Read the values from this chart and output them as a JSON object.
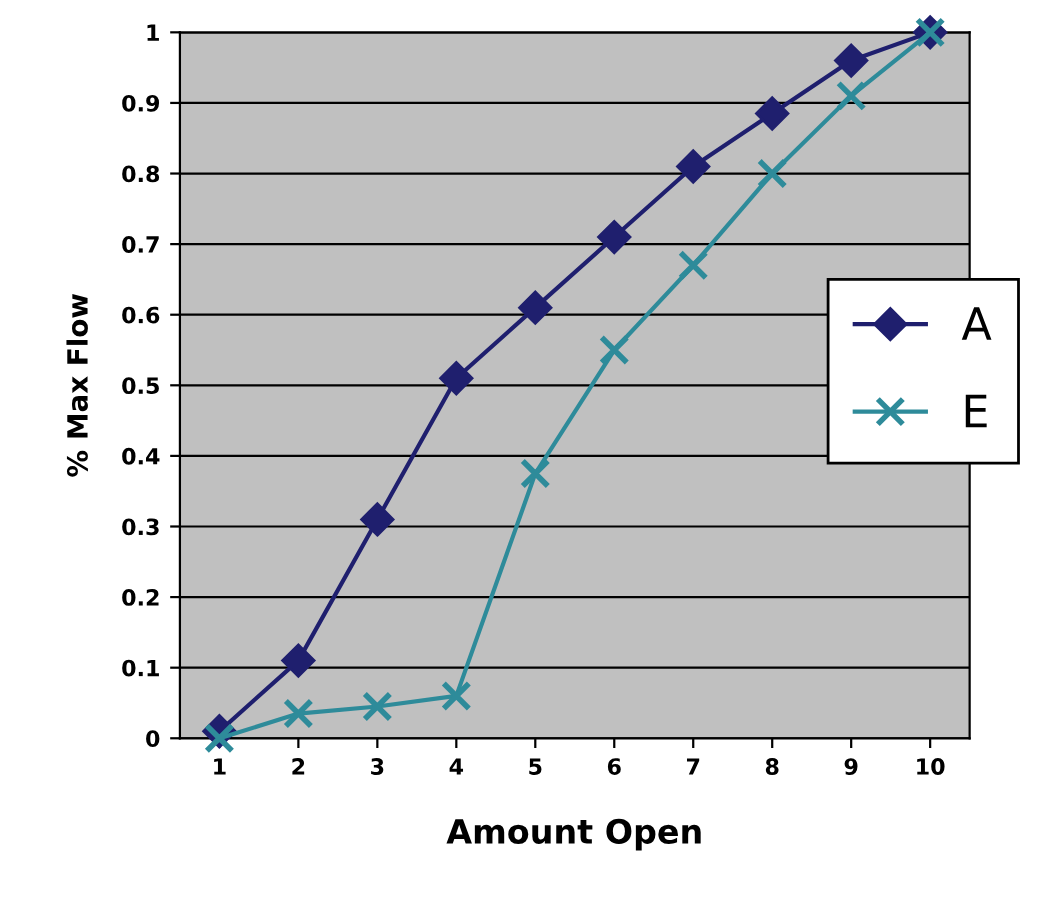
{
  "chart_data": {
    "type": "line",
    "xlabel": "Amount Open",
    "ylabel": "% Max Flow",
    "categories": [
      "1",
      "2",
      "3",
      "4",
      "5",
      "6",
      "7",
      "8",
      "9",
      "10"
    ],
    "series": [
      {
        "name": "A",
        "color": "#1f1f6e",
        "marker": "diamond",
        "values": [
          0.01,
          0.11,
          0.31,
          0.51,
          0.61,
          0.71,
          0.81,
          0.885,
          0.96,
          1.0
        ]
      },
      {
        "name": "E",
        "color": "#2e8b9a",
        "marker": "cross",
        "values": [
          0.0,
          0.035,
          0.045,
          0.06,
          0.375,
          0.55,
          0.67,
          0.8,
          0.91,
          1.0
        ]
      }
    ],
    "ylim": [
      0,
      1
    ],
    "yticks": [
      0,
      0.1,
      0.2,
      0.3,
      0.4,
      0.5,
      0.6,
      0.7,
      0.8,
      0.9,
      1
    ],
    "grid": "y",
    "legend": "right",
    "line_style": "solid"
  }
}
